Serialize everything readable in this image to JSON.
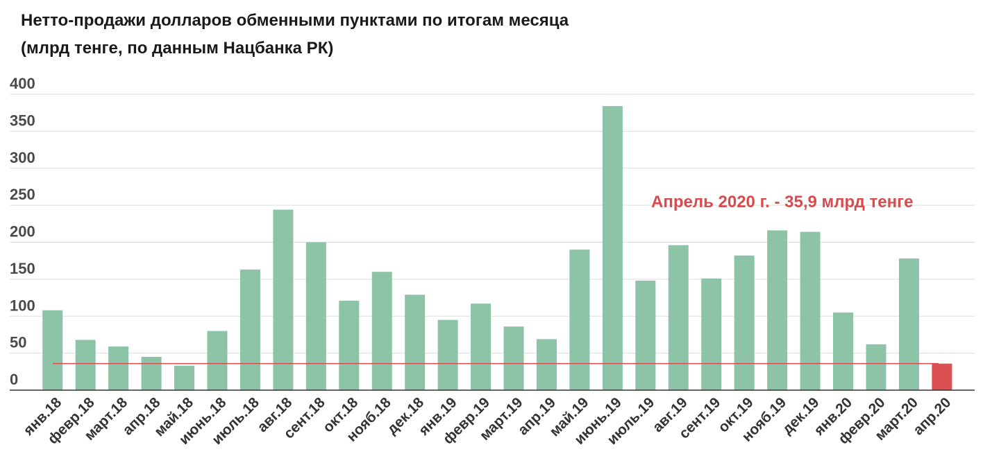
{
  "title_line1": "Нетто-продажи долларов обменными пунктами по итогам месяца",
  "title_line2": "(млрд тенге, по данным Нацбанка РК)",
  "chart_data": {
    "type": "bar",
    "title": "Нетто-продажи долларов обменными пунктами по итогам месяца (млрд тенге, по данным Нацбанка РК)",
    "categories": [
      "янв.18",
      "февр.18",
      "март.18",
      "апр.18",
      "май.18",
      "июнь.18",
      "июль.18",
      "авг.18",
      "сент.18",
      "окт.18",
      "нояб.18",
      "дек.18",
      "янв.19",
      "февр.19",
      "март.19",
      "апр.19",
      "май.19",
      "июнь.19",
      "июль.19",
      "авг.19",
      "сент.19",
      "окт.19",
      "нояб.19",
      "дек.19",
      "янв.20",
      "февр.20",
      "март.20",
      "апр.20"
    ],
    "values": [
      108,
      68,
      59,
      45,
      33,
      80,
      163,
      244,
      200,
      121,
      160,
      129,
      95,
      117,
      86,
      69,
      190,
      384,
      148,
      196,
      151,
      182,
      216,
      214,
      105,
      62,
      178,
      35.9
    ],
    "highlight_index": 27,
    "reference_line": 35.9,
    "annotation": "Апрель 2020 г. - 35,9 млрд тенге",
    "ylim": [
      0,
      400
    ],
    "yticks": [
      0,
      50,
      100,
      150,
      200,
      250,
      300,
      350,
      400
    ],
    "grid": true,
    "colors": {
      "bar": "#8dc3a7",
      "highlight": "#dc4f52",
      "reference_line": "#d84b4f",
      "annotation": "#d84b4f",
      "grid": "#dddddd",
      "axis": "#333333"
    }
  }
}
